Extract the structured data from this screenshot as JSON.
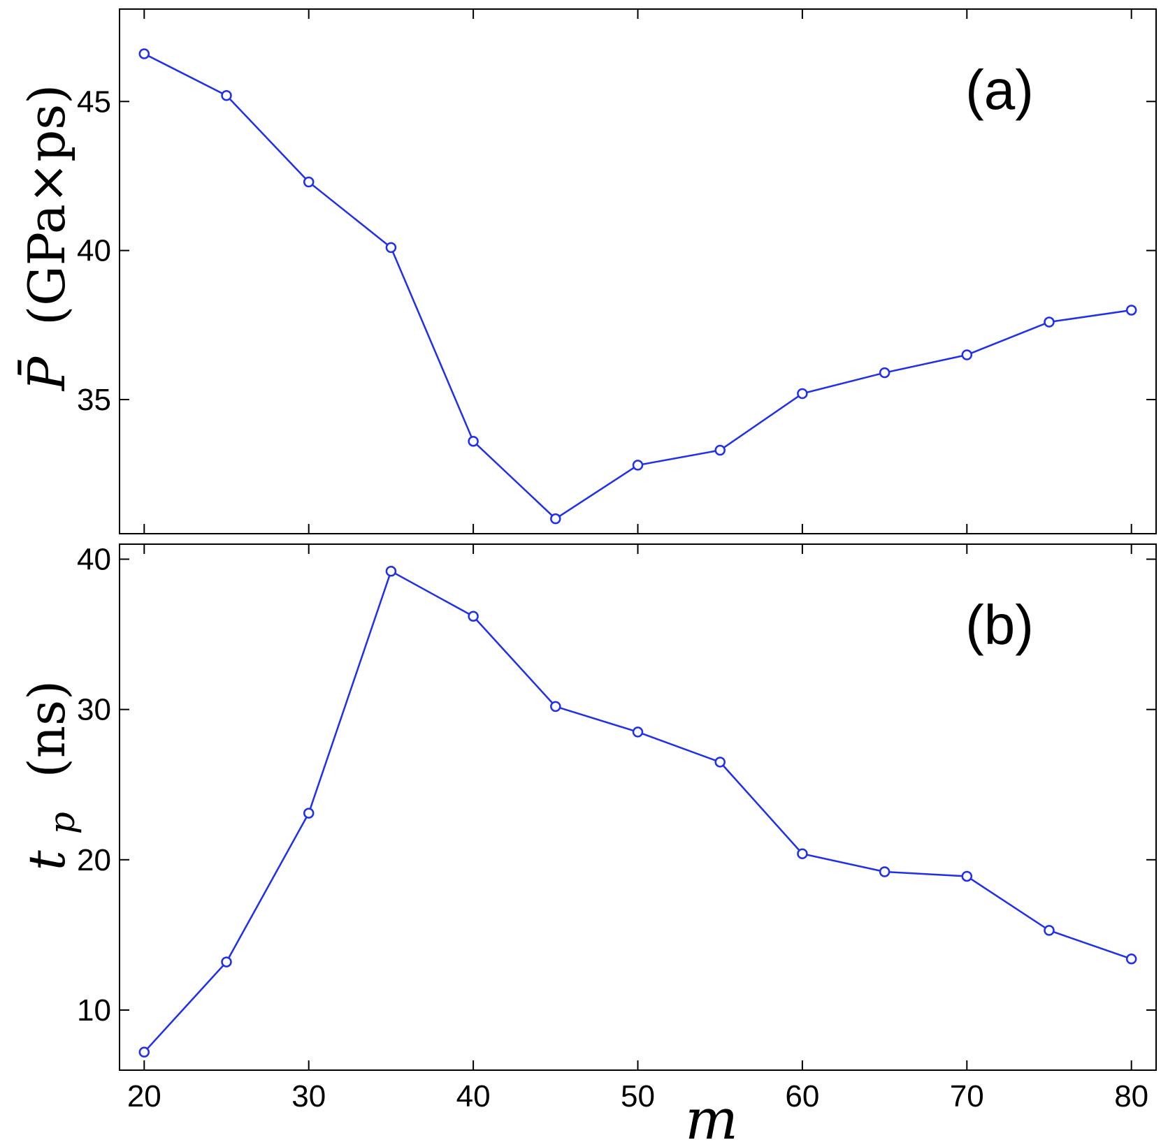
{
  "chart_data": [
    {
      "type": "line",
      "panel_label": "(a)",
      "ylabel_symbol": "P̄",
      "ylabel_unit": "(GPa×ps)",
      "xlabel": "",
      "x": [
        20,
        25,
        30,
        35,
        40,
        45,
        50,
        55,
        60,
        65,
        70,
        75,
        80
      ],
      "series": [
        {
          "values": [
            46.6,
            45.2,
            42.3,
            40.1,
            33.6,
            31.0,
            32.8,
            33.3,
            35.2,
            35.9,
            36.5,
            37.6,
            38.0
          ]
        }
      ],
      "xlim": [
        18.5,
        81.5
      ],
      "ylim": [
        30.5,
        48.1
      ],
      "yticks": [
        35,
        40,
        45
      ],
      "grid": false,
      "color": "#1f2ff0",
      "marker": "open-circle"
    },
    {
      "type": "line",
      "panel_label": "(b)",
      "ylabel_symbol": "t",
      "ylabel_subscript": "p",
      "ylabel_unit": "(ns)",
      "xlabel": "m",
      "x": [
        20,
        25,
        30,
        35,
        40,
        45,
        50,
        55,
        60,
        65,
        70,
        75,
        80
      ],
      "series": [
        {
          "values": [
            7.2,
            13.2,
            23.1,
            39.2,
            36.2,
            30.2,
            28.5,
            26.5,
            20.4,
            19.2,
            18.9,
            15.3,
            13.4
          ]
        }
      ],
      "xlim": [
        18.5,
        81.5
      ],
      "ylim": [
        6.0,
        41.0
      ],
      "xticks": [
        20,
        30,
        40,
        50,
        60,
        70,
        80
      ],
      "yticks": [
        10,
        20,
        30,
        40
      ],
      "grid": false,
      "color": "#1f2ff0",
      "marker": "open-circle"
    }
  ]
}
